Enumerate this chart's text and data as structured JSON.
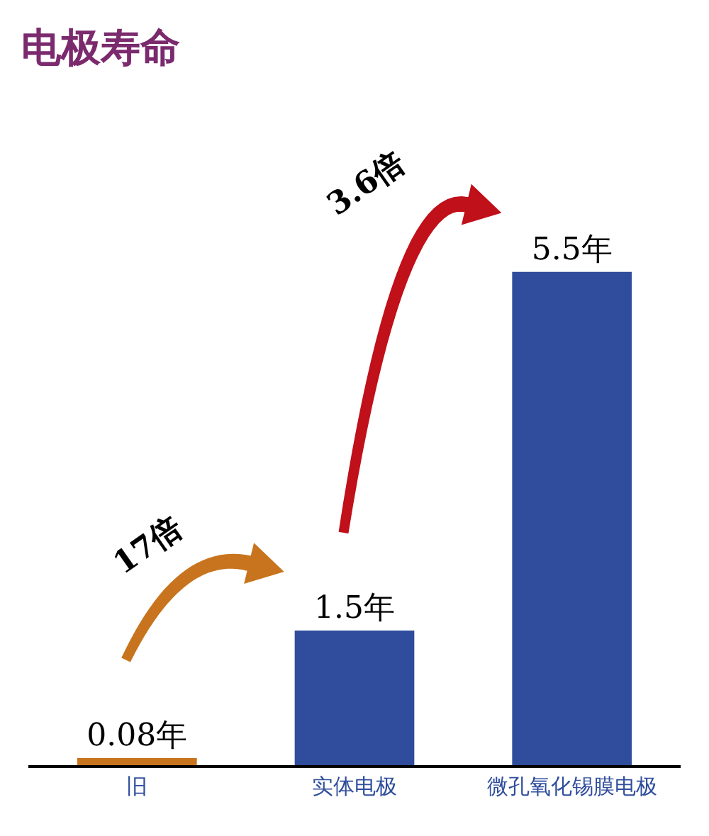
{
  "chart_data": {
    "type": "bar",
    "title": "电极寿命",
    "categories": [
      "旧",
      "实体电极",
      "微孔氧化锡膜电极"
    ],
    "values": [
      0.08,
      1.5,
      5.5
    ],
    "value_labels": [
      "0.08年",
      "1.5年",
      "5.5年"
    ],
    "colors": [
      "#c8741e",
      "#2f4d9c",
      "#2f4d9c"
    ],
    "annotations": [
      "17倍",
      "3.6倍"
    ],
    "tick_labels": "x"
  }
}
